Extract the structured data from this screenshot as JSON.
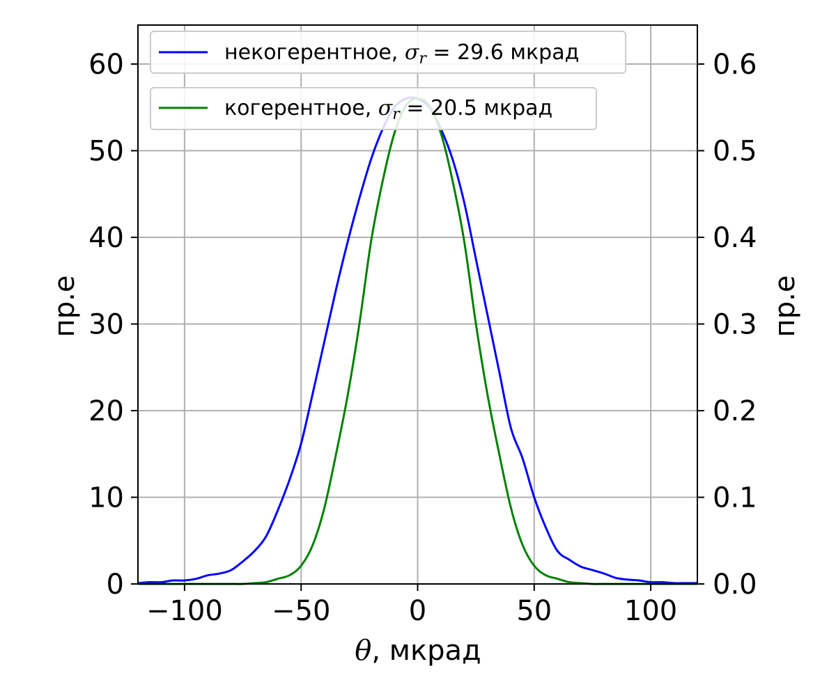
{
  "chart_data": {
    "type": "line",
    "xlabel_symbol": "θ",
    "xlabel_rest": ", мкрад",
    "ylabel_left": "пр.е",
    "ylabel_right": "пр.е",
    "xlim": [
      -120,
      120
    ],
    "ylim_left": [
      0,
      64.5
    ],
    "ylim_right": [
      0,
      0.645
    ],
    "x_ticks": [
      -100,
      -50,
      0,
      50,
      100
    ],
    "x_tick_labels": [
      "−100",
      "−50",
      "0",
      "50",
      "100"
    ],
    "y_left_ticks": [
      0,
      10,
      20,
      30,
      40,
      50,
      60
    ],
    "y_left_tick_labels": [
      "0",
      "10",
      "20",
      "30",
      "40",
      "50",
      "60"
    ],
    "y_right_ticks": [
      0.0,
      0.1,
      0.2,
      0.3,
      0.4,
      0.5,
      0.6
    ],
    "y_right_tick_labels": [
      "0.0",
      "0.1",
      "0.2",
      "0.3",
      "0.4",
      "0.5",
      "0.6"
    ],
    "grid": true,
    "legend_placement": "top-left",
    "series": [
      {
        "name_prefix": "некогерентное, ",
        "name_sigma": "σ",
        "name_sub": "r",
        "name_suffix": " = 29.6 мкрад",
        "color": "#0000ff",
        "axis": "left",
        "x": [
          -120,
          -115,
          -110,
          -105,
          -100,
          -95,
          -90,
          -85,
          -80,
          -75,
          -70,
          -65,
          -60,
          -55,
          -50,
          -45,
          -40,
          -35,
          -30,
          -25,
          -20,
          -15,
          -10,
          -5,
          0,
          5,
          10,
          15,
          20,
          25,
          30,
          35,
          40,
          45,
          50,
          55,
          60,
          65,
          70,
          75,
          80,
          85,
          90,
          95,
          100,
          105,
          110,
          115,
          120
        ],
        "y": [
          0.1,
          0.2,
          0.2,
          0.4,
          0.4,
          0.6,
          1.0,
          1.2,
          1.6,
          2.6,
          3.8,
          5.5,
          8.5,
          12.0,
          16.2,
          22.0,
          28.0,
          34.0,
          39.5,
          44.5,
          49.0,
          52.5,
          55.0,
          56.0,
          56.0,
          55.0,
          52.5,
          49.0,
          44.0,
          37.5,
          31.0,
          24.5,
          18.0,
          14.5,
          10.0,
          6.5,
          3.8,
          2.8,
          2.0,
          1.6,
          1.2,
          0.7,
          0.5,
          0.4,
          0.2,
          0.2,
          0.1,
          0.1,
          0.1
        ]
      },
      {
        "name_prefix": "когерентное, ",
        "name_sigma": "σ",
        "name_sub": "r",
        "name_suffix": " = 20.5 мкрад",
        "color": "#008000",
        "axis": "right",
        "x": [
          -120,
          -115,
          -110,
          -105,
          -100,
          -95,
          -90,
          -85,
          -80,
          -75,
          -70,
          -65,
          -60,
          -55,
          -50,
          -45,
          -40,
          -35,
          -30,
          -25,
          -20,
          -15,
          -10,
          -5,
          0,
          5,
          10,
          15,
          20,
          25,
          30,
          35,
          40,
          45,
          50,
          55,
          60,
          65,
          70,
          75,
          80,
          85,
          90,
          95,
          100,
          105,
          110,
          115,
          120
        ],
        "y": [
          0,
          0,
          0,
          0,
          0,
          0,
          0,
          0,
          0,
          0,
          0.001,
          0.002,
          0.006,
          0.01,
          0.021,
          0.045,
          0.088,
          0.15,
          0.218,
          0.3,
          0.395,
          0.465,
          0.52,
          0.552,
          0.56,
          0.552,
          0.52,
          0.465,
          0.395,
          0.3,
          0.218,
          0.15,
          0.088,
          0.045,
          0.021,
          0.01,
          0.006,
          0.002,
          0.001,
          0,
          0,
          0,
          0,
          0,
          0,
          0,
          0,
          0,
          0
        ]
      }
    ]
  }
}
